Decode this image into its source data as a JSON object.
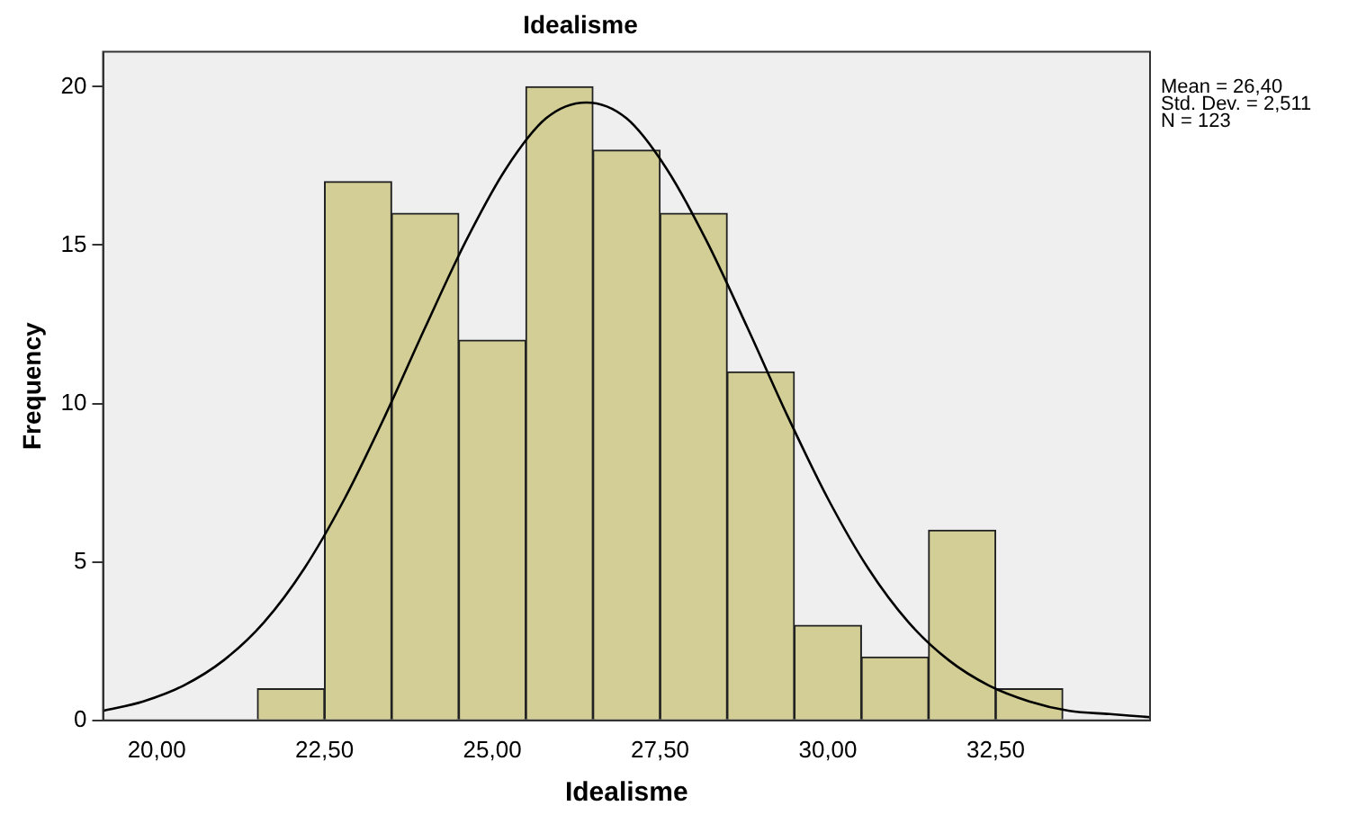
{
  "chart_data": {
    "type": "histogram",
    "title": "Idealisme",
    "xlabel": "Idealisme",
    "ylabel": "Frequency",
    "bins": [
      21.5,
      22.5,
      23.5,
      24.5,
      25.5,
      26.5,
      27.5,
      28.5,
      29.5,
      30.5,
      31.5,
      32.5,
      33.5
    ],
    "values": [
      1,
      17,
      16,
      12,
      20,
      18,
      16,
      11,
      3,
      2,
      6,
      1
    ],
    "color": "#d2ce96",
    "series": [
      {
        "type": "line",
        "color": "#000000",
        "x": [
          19.2,
          19.8,
          20.4,
          21.0,
          21.6,
          22.2,
          22.8,
          23.4,
          24.0,
          24.6,
          25.2,
          25.8,
          26.4,
          27.0,
          27.6,
          28.2,
          28.8,
          29.4,
          30.0,
          30.6,
          31.2,
          31.8,
          32.4,
          33.0,
          33.6,
          34.2,
          34.8
        ],
        "values": [
          0.3,
          0.6,
          1.1,
          1.9,
          3.1,
          4.8,
          7.0,
          9.6,
          12.4,
          15.1,
          17.4,
          19.0,
          19.5,
          19.0,
          17.4,
          15.1,
          12.4,
          9.6,
          7.0,
          4.8,
          3.1,
          1.9,
          1.1,
          0.6,
          0.3,
          0.2,
          0.1
        ]
      }
    ],
    "xlim": [
      19.2,
      34.8
    ],
    "xticks": [
      {
        "value": 20,
        "label": "20,00"
      },
      {
        "value": 22.5,
        "label": "22,50"
      },
      {
        "value": 25,
        "label": "25,00"
      },
      {
        "value": 27.5,
        "label": "27,50"
      },
      {
        "value": 30,
        "label": "30,00"
      },
      {
        "value": 32.5,
        "label": "32,50"
      }
    ],
    "ylim": [
      0,
      21.1
    ],
    "yticks": [
      0,
      5,
      10,
      15,
      20
    ],
    "grid": false,
    "legend": false,
    "annotations": [
      "Mean = 26,40",
      "Std. Dev. = 2,511",
      "N = 123"
    ]
  }
}
